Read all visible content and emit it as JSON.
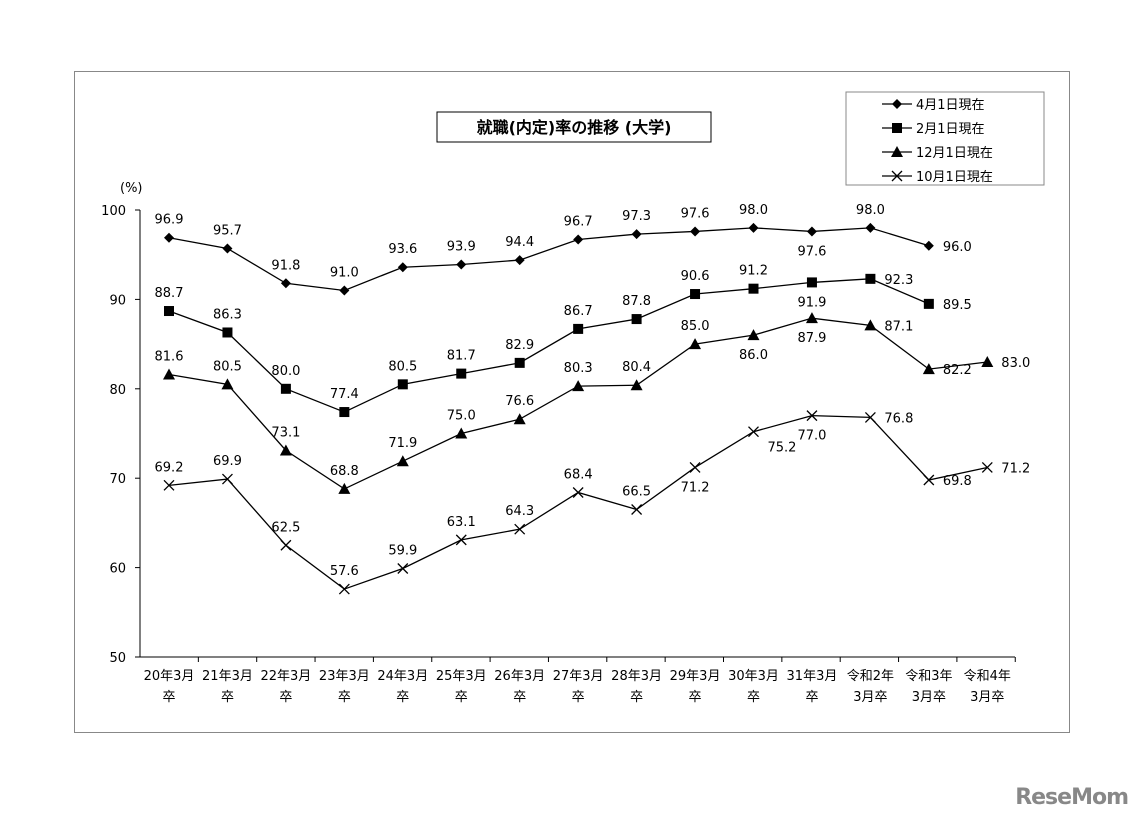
{
  "chart_data": {
    "type": "line",
    "title": "就職(内定)率の推移 (大学)",
    "ylabel": "(%)",
    "ylim": [
      50,
      100
    ],
    "yticks": [
      50,
      60,
      70,
      80,
      90,
      100
    ],
    "grid": false,
    "legend_position": "top-right",
    "categories": [
      [
        "20年3月",
        "卒"
      ],
      [
        "21年3月",
        "卒"
      ],
      [
        "22年3月",
        "卒"
      ],
      [
        "23年3月",
        "卒"
      ],
      [
        "24年3月",
        "卒"
      ],
      [
        "25年3月",
        "卒"
      ],
      [
        "26年3月",
        "卒"
      ],
      [
        "27年3月",
        "卒"
      ],
      [
        "28年3月",
        "卒"
      ],
      [
        "29年3月",
        "卒"
      ],
      [
        "30年3月",
        "卒"
      ],
      [
        "31年3月",
        "卒"
      ],
      [
        "令和2年",
        "3月卒"
      ],
      [
        "令和3年",
        "3月卒"
      ],
      [
        "令和4年",
        "3月卒"
      ]
    ],
    "series": [
      {
        "name": "4月1日現在",
        "marker": "diamond",
        "values": [
          96.9,
          95.7,
          91.8,
          91.0,
          93.6,
          93.9,
          94.4,
          96.7,
          97.3,
          97.6,
          98.0,
          97.6,
          98.0,
          96.0,
          null
        ]
      },
      {
        "name": "2月1日現在",
        "marker": "square",
        "values": [
          88.7,
          86.3,
          80.0,
          77.4,
          80.5,
          81.7,
          82.9,
          86.7,
          87.8,
          90.6,
          91.2,
          91.9,
          92.3,
          89.5,
          null
        ]
      },
      {
        "name": "12月1日現在",
        "marker": "triangle",
        "values": [
          81.6,
          80.5,
          73.1,
          68.8,
          71.9,
          75.0,
          76.6,
          80.3,
          80.4,
          85.0,
          86.0,
          87.9,
          87.1,
          82.2,
          83.0
        ]
      },
      {
        "name": "10月1日現在",
        "marker": "x",
        "values": [
          69.2,
          69.9,
          62.5,
          57.6,
          59.9,
          63.1,
          64.3,
          68.4,
          66.5,
          71.2,
          75.2,
          77.0,
          76.8,
          69.8,
          71.2
        ]
      }
    ]
  },
  "watermark": "ReseMom"
}
